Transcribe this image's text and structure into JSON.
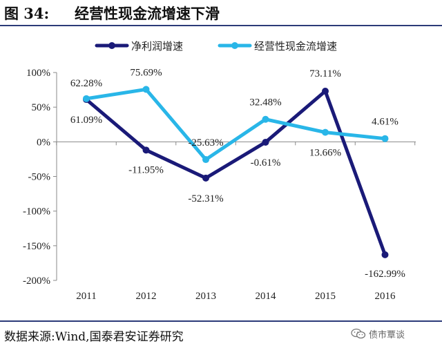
{
  "figure": {
    "label": "图 34:",
    "title": "经营性现金流增速下滑",
    "source": "数据来源:Wind,国泰君安证券研究",
    "watermark": "债市覃谈"
  },
  "colors": {
    "series1": "#1a1a78",
    "series2": "#29b6e8",
    "rule": "#2b3a78",
    "axis": "#888888"
  },
  "chart_data": {
    "type": "line",
    "categories": [
      "2011",
      "2012",
      "2013",
      "2014",
      "2015",
      "2016"
    ],
    "ylim": [
      -200,
      100
    ],
    "yticks": [
      100,
      50,
      0,
      -50,
      -100,
      -150,
      -200
    ],
    "ytick_labels": [
      "100%",
      "50%",
      "0%",
      "-50%",
      "-100%",
      "-150%",
      "-200%"
    ],
    "grid": false,
    "legend": "top-center",
    "series": [
      {
        "name": "净利润增速",
        "values": [
          61.09,
          -11.95,
          -52.31,
          -0.61,
          73.11,
          -162.99
        ],
        "labels": [
          "61.09%",
          "-11.95%",
          "-52.31%",
          "-0.61%",
          "73.11%",
          "-162.99%"
        ]
      },
      {
        "name": "经营性现金流增速",
        "values": [
          62.28,
          75.69,
          -25.63,
          32.48,
          13.66,
          4.61
        ],
        "labels": [
          "62.28%",
          "75.69%",
          "-25.63%",
          "32.48%",
          "13.66%",
          "4.61%"
        ]
      }
    ]
  }
}
